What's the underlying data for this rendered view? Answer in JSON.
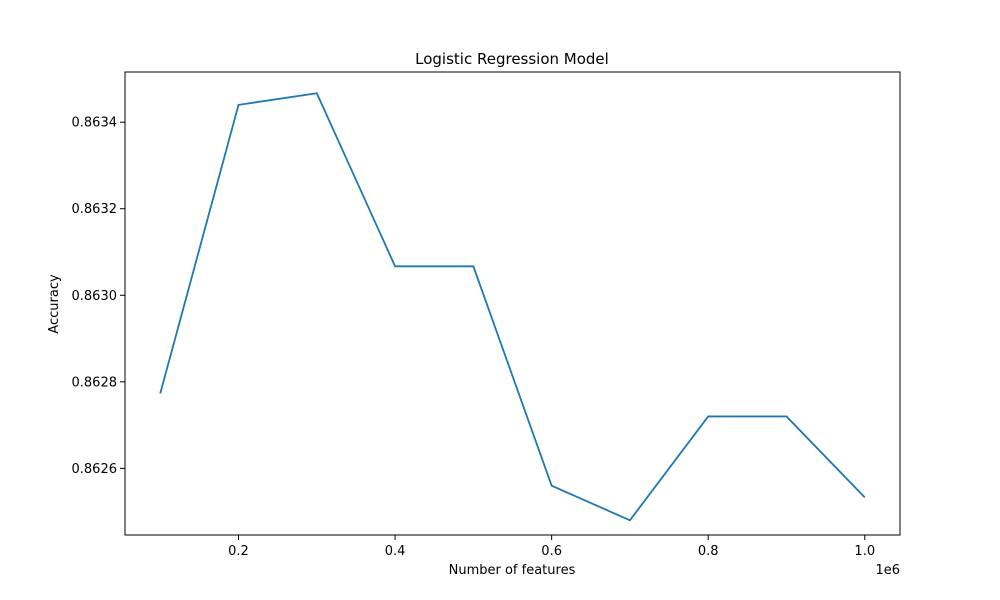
{
  "chart_data": {
    "type": "line",
    "title": "Logistic Regression Model",
    "xlabel": "Number of features",
    "ylabel": "Accuracy",
    "x_offset_label": "1e6",
    "x": [
      100000,
      200000,
      300000,
      400000,
      500000,
      600000,
      700000,
      800000,
      900000,
      1000000
    ],
    "series": [
      {
        "values": [
          0.862773,
          0.86344,
          0.863467,
          0.863067,
          0.863067,
          0.86256,
          0.86248,
          0.86272,
          0.86272,
          0.862533
        ]
      }
    ],
    "xlim": [
      55000,
      1045000
    ],
    "ylim": [
      0.862446,
      0.863516
    ],
    "x_ticks": [
      200000,
      400000,
      600000,
      800000,
      1000000
    ],
    "x_tick_labels": [
      "0.2",
      "0.4",
      "0.6",
      "0.8",
      "1.0"
    ],
    "y_ticks": [
      0.8626,
      0.8628,
      0.863,
      0.8632,
      0.8634
    ],
    "y_tick_labels": [
      "0.8626",
      "0.8628",
      "0.8630",
      "0.8632",
      "0.8634"
    ],
    "grid": false,
    "line_color": "#1f77b4"
  }
}
